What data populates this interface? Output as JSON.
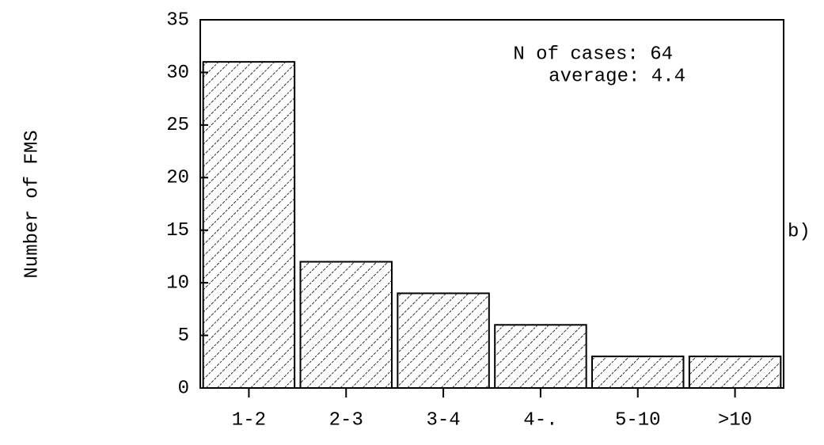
{
  "chart_data": {
    "type": "bar",
    "ylabel": "Number of FMS",
    "annotations": [
      "N of cases: 64",
      "average: 4.4",
      "b)"
    ],
    "categories": [
      "1-2",
      "2-3",
      "3-4",
      "4-.",
      "5-10",
      ">10"
    ],
    "values": [
      31,
      12,
      9,
      6,
      3,
      3
    ],
    "color": "#000000",
    "hatch": true,
    "ylim": [
      0,
      35
    ],
    "yticks": [
      0,
      5,
      10,
      15,
      20,
      25,
      30,
      35
    ],
    "grid": false
  }
}
